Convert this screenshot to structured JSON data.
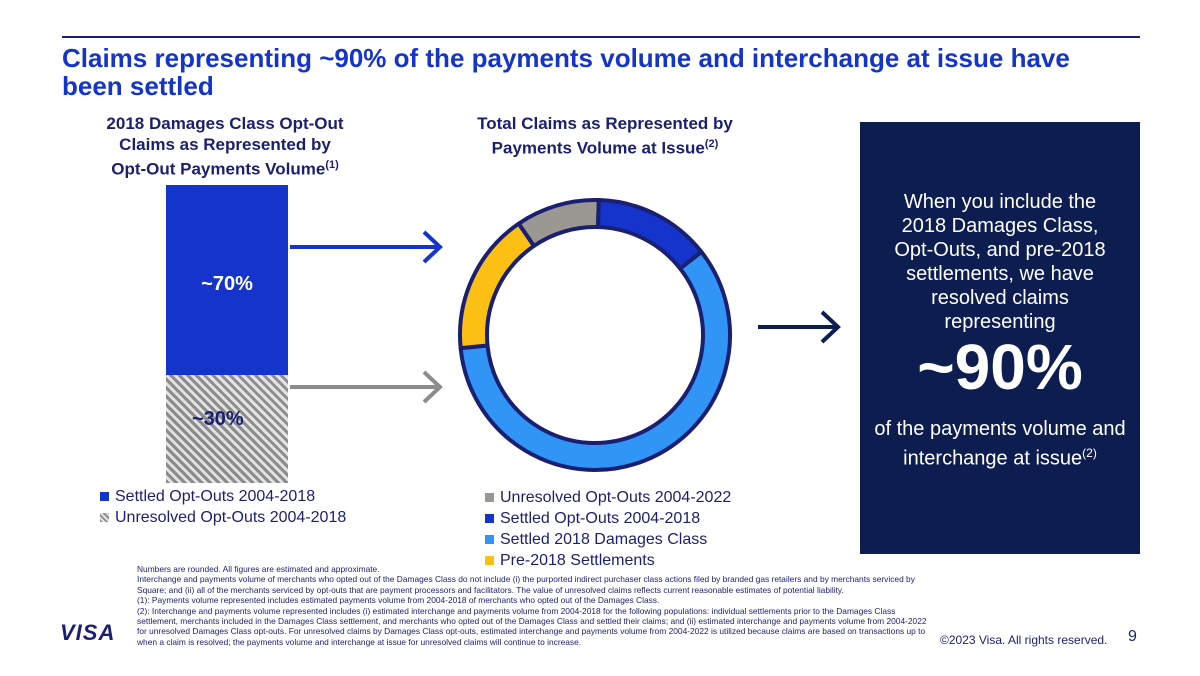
{
  "header": {
    "title": "Claims representing ~90% of the payments volume and interchange at issue have been settled"
  },
  "left_chart": {
    "heading_line1": "2018 Damages Class Opt-Out",
    "heading_line2": "Claims as Represented by",
    "heading_line3": "Opt-Out Payments Volume",
    "heading_note": "(1)",
    "legend": [
      {
        "label": "Settled Opt-Outs 2004-2018",
        "color": "#1434cb"
      },
      {
        "label": "Unresolved Opt-Outs 2004-2018",
        "color": "#9b9b9b",
        "pattern": "hatched"
      }
    ]
  },
  "middle_chart": {
    "heading_line1": "Total Claims as Represented by",
    "heading_line2": "Payments Volume at Issue",
    "heading_note": "(2)",
    "legend": [
      {
        "label": "Unresolved Opt-Outs 2004-2022",
        "color": "#9b9792"
      },
      {
        "label": "Settled Opt-Outs 2004-2018",
        "color": "#1434cb"
      },
      {
        "label": "Settled 2018 Damages Class",
        "color": "#3195f6"
      },
      {
        "label": "Pre-2018 Settlements",
        "color": "#fcc015"
      }
    ]
  },
  "chart_data": [
    {
      "type": "bar",
      "stacked": true,
      "series": [
        {
          "name": "Settled Opt-Outs 2004-2018",
          "value": 70,
          "label": "~70%",
          "color": "#1434cb"
        },
        {
          "name": "Unresolved Opt-Outs 2004-2018",
          "value": 30,
          "label": "~30%",
          "color": "#9b9b9b",
          "pattern": "hatched"
        }
      ],
      "ylim": [
        0,
        100
      ]
    },
    {
      "type": "pie",
      "donut": true,
      "slices": [
        {
          "name": "Settled 2018 Damages Class",
          "value": 59,
          "color": "#3195f6"
        },
        {
          "name": "Pre-2018 Settlements",
          "value": 17,
          "color": "#fcc015"
        },
        {
          "name": "Unresolved Opt-Outs 2004-2022",
          "value": 10,
          "color": "#9b9792"
        },
        {
          "name": "Settled Opt-Outs 2004-2018",
          "value": 14,
          "color": "#1434cb"
        }
      ]
    }
  ],
  "panel": {
    "intro": "When you include the 2018 Damages Class, Opt-Outs, and pre-2018 settlements, we have resolved claims representing",
    "big_value": "~90%",
    "outro": "of the payments volume and interchange at issue",
    "outro_note": "(2)"
  },
  "footnotes": [
    "Numbers are rounded. All figures are estimated and approximate.",
    "Interchange and payments volume of merchants who opted out of the Damages Class do not include (i) the purported indirect purchaser class actions filed by branded gas retailers and by merchants serviced by Square; and (ii) all of the merchants serviced by opt-outs that are payment processors and facilitators. The value of unresolved claims reflects current reasonable estimates of potential liability.",
    "(1): Payments volume represented includes estimated payments volume from 2004-2018 of merchants who opted out of the Damages Class.",
    "(2): Interchange and payments volume represented includes (i) estimated interchange and payments volume from 2004-2018 for the following populations: individual settlements prior to the Damages Class settlement, merchants included in the Damages Class settlement, and merchants who opted out of the Damages Class and settled their claims; and (ii) estimated interchange and payments volume from 2004-2022 for unresolved Damages Class opt-outs. For unresolved claims by Damages Class opt-outs, estimated interchange and payments volume from 2004-2022 is utilized because claims are based on transactions up to when a claim is resolved; the payments volume and interchange at issue for unresolved claims will continue to increase."
  ],
  "footer": {
    "logo": "VISA",
    "copyright": "©2023 Visa. All rights reserved.",
    "page_number": "9"
  },
  "colors": {
    "title": "#1434cb",
    "navy": "#1a1f71",
    "panel_bg": "#0e1d50",
    "arrow_blue": "#1434cb",
    "arrow_gray": "#8c8c8c",
    "arrow_navy": "#0e1d50"
  }
}
